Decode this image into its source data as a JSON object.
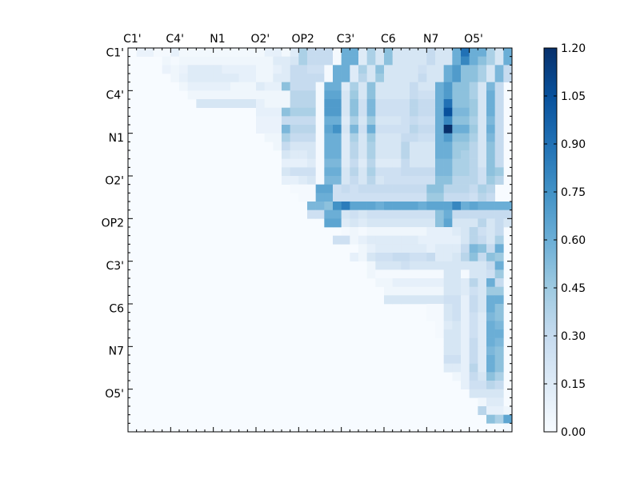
{
  "chart_data": {
    "type": "heatmap",
    "title": "",
    "xlabel": "",
    "ylabel": "",
    "n": 45,
    "x_tick_labels": [
      "C1'",
      "C4'",
      "N1",
      "O2'",
      "OP2",
      "C3'",
      "C6",
      "N7",
      "O5'"
    ],
    "y_tick_labels": [
      "C1'",
      "C4'",
      "N1",
      "O2'",
      "OP2",
      "C3'",
      "C6",
      "N7",
      "O5'"
    ],
    "colorbar": {
      "range": [
        0,
        1.2
      ],
      "ticks": [
        "0.00",
        "0.15",
        "0.30",
        "0.45",
        "0.60",
        "0.75",
        "0.90",
        "1.05",
        "1.20"
      ],
      "colormap": "Blues",
      "low_color": "#f7fbff",
      "high_color": "#08306b"
    },
    "row_profiles": [
      {
        "row": 0,
        "start": 1,
        "values": [
          0.08,
          0.08,
          0.02,
          0.02,
          0.1,
          0.03,
          0.03,
          0.03,
          0.03,
          0.03,
          0.03,
          0.03,
          0.03,
          0.03,
          0.03,
          0.1,
          0.1,
          0.03,
          0.15,
          0.4,
          0.3,
          0.3,
          0.3,
          0.02,
          0.6,
          0.6,
          0.15,
          0.4,
          0.2,
          0.5,
          0.2,
          0.2,
          0.2,
          0.2,
          0.3,
          0.2,
          0.2,
          0.6,
          0.9,
          0.6,
          0.6,
          0.4,
          0.2,
          0.6,
          0.3
        ]
      },
      {
        "row": 1,
        "start": 4,
        "values": [
          0.05,
          0.02,
          0.05,
          0.05,
          0.05,
          0.05,
          0.05,
          0.05,
          0.05,
          0.05,
          0.05,
          0.05,
          0.05,
          0.15,
          0.15,
          0.2,
          0.4,
          0.3,
          0.3,
          0.3,
          0.02,
          0.6,
          0.6,
          0.15,
          0.4,
          0.2,
          0.5,
          0.2,
          0.2,
          0.2,
          0.2,
          0.3,
          0.2,
          0.2,
          0.6,
          0.8,
          0.6,
          0.5,
          0.4,
          0.2,
          0.6,
          0.3
        ]
      },
      {
        "row": 2,
        "start": 4,
        "values": [
          0.08,
          0.05,
          0.08,
          0.15,
          0.15,
          0.15,
          0.15,
          0.1,
          0.1,
          0.1,
          0.1,
          0.05,
          0.05,
          0.1,
          0.15,
          0.3,
          0.3,
          0.25,
          0.25,
          0.02,
          0.6,
          0.6,
          0.15,
          0.4,
          0.2,
          0.5,
          0.2,
          0.2,
          0.2,
          0.2,
          0.25,
          0.2,
          0.2,
          0.6,
          0.7,
          0.5,
          0.5,
          0.4,
          0.2,
          0.55,
          0.3
        ]
      },
      {
        "row": 3,
        "start": 5,
        "values": [
          0.05,
          0.1,
          0.15,
          0.15,
          0.15,
          0.15,
          0.15,
          0.15,
          0.1,
          0.1,
          0.05,
          0.05,
          0.15,
          0.15,
          0.3,
          0.3,
          0.3,
          0.3,
          0.02,
          0.6,
          0.6,
          0.15,
          0.35,
          0.2,
          0.45,
          0.2,
          0.2,
          0.2,
          0.2,
          0.3,
          0.2,
          0.2,
          0.6,
          0.7,
          0.5,
          0.5,
          0.4,
          0.2,
          0.55,
          0.3
        ]
      },
      {
        "row": 4,
        "start": 6,
        "values": [
          0.05,
          0.1,
          0.1,
          0.1,
          0.1,
          0.1,
          0.05,
          0.05,
          0.05,
          0.15,
          0.1,
          0.1,
          0.5,
          0.3,
          0.3,
          0.3,
          0.02,
          0.6,
          0.6,
          0.15,
          0.4,
          0.2,
          0.5,
          0.2,
          0.2,
          0.2,
          0.2,
          0.3,
          0.2,
          0.2,
          0.6,
          0.7,
          0.5,
          0.5,
          0.4,
          0.2,
          0.55,
          0.3
        ]
      },
      {
        "row": 5,
        "start": 7,
        "values": [
          0.05,
          0.05,
          0.05,
          0.05,
          0.05,
          0.05,
          0.05,
          0.05,
          0.05,
          0.05,
          0.05,
          0.05,
          0.35,
          0.35,
          0.35,
          0.02,
          0.65,
          0.65,
          0.2,
          0.45,
          0.2,
          0.5,
          0.2,
          0.2,
          0.2,
          0.2,
          0.3,
          0.25,
          0.25,
          0.6,
          0.7,
          0.5,
          0.5,
          0.4,
          0.2,
          0.6,
          0.3
        ]
      },
      {
        "row": 6,
        "start": 8,
        "values": [
          0.2,
          0.2,
          0.2,
          0.2,
          0.2,
          0.2,
          0.2,
          0.1,
          0.05,
          0.05,
          0.05,
          0.35,
          0.35,
          0.35,
          0.02,
          0.7,
          0.7,
          0.2,
          0.5,
          0.25,
          0.55,
          0.25,
          0.25,
          0.25,
          0.25,
          0.35,
          0.3,
          0.3,
          0.6,
          0.9,
          0.5,
          0.5,
          0.45,
          0.2,
          0.6,
          0.3
        ]
      },
      {
        "row": 7,
        "start": 15,
        "values": [
          0.1,
          0.1,
          0.1,
          0.5,
          0.4,
          0.4,
          0.4,
          0.02,
          0.7,
          0.7,
          0.2,
          0.5,
          0.25,
          0.55,
          0.25,
          0.25,
          0.25,
          0.25,
          0.35,
          0.3,
          0.3,
          0.6,
          1.05,
          0.55,
          0.55,
          0.45,
          0.2,
          0.6,
          0.3
        ]
      },
      {
        "row": 8,
        "start": 15,
        "values": [
          0.08,
          0.08,
          0.08,
          0.3,
          0.3,
          0.3,
          0.3,
          0.02,
          0.6,
          0.6,
          0.15,
          0.4,
          0.2,
          0.45,
          0.2,
          0.2,
          0.2,
          0.25,
          0.3,
          0.25,
          0.25,
          0.6,
          0.8,
          0.5,
          0.5,
          0.4,
          0.2,
          0.55,
          0.3
        ]
      },
      {
        "row": 9,
        "start": 15,
        "values": [
          0.08,
          0.08,
          0.08,
          0.55,
          0.35,
          0.35,
          0.35,
          0.02,
          0.65,
          0.75,
          0.2,
          0.55,
          0.25,
          0.6,
          0.25,
          0.25,
          0.25,
          0.25,
          0.35,
          0.3,
          0.3,
          0.6,
          1.2,
          0.6,
          0.6,
          0.45,
          0.2,
          0.6,
          0.3
        ]
      },
      {
        "row": 10,
        "start": 16,
        "values": [
          0.05,
          0.05,
          0.4,
          0.3,
          0.3,
          0.3,
          0.02,
          0.6,
          0.6,
          0.15,
          0.4,
          0.2,
          0.45,
          0.2,
          0.2,
          0.2,
          0.3,
          0.3,
          0.25,
          0.25,
          0.6,
          0.7,
          0.5,
          0.5,
          0.4,
          0.2,
          0.55,
          0.3
        ]
      },
      {
        "row": 11,
        "start": 17,
        "values": [
          0.05,
          0.3,
          0.2,
          0.2,
          0.2,
          0.02,
          0.6,
          0.6,
          0.15,
          0.35,
          0.2,
          0.4,
          0.2,
          0.2,
          0.2,
          0.35,
          0.2,
          0.2,
          0.2,
          0.6,
          0.6,
          0.45,
          0.45,
          0.35,
          0.2,
          0.5,
          0.3
        ]
      },
      {
        "row": 12,
        "start": 18,
        "values": [
          0.2,
          0.15,
          0.15,
          0.2,
          0.02,
          0.6,
          0.6,
          0.15,
          0.35,
          0.2,
          0.4,
          0.2,
          0.2,
          0.2,
          0.35,
          0.2,
          0.2,
          0.2,
          0.6,
          0.6,
          0.45,
          0.4,
          0.35,
          0.2,
          0.5,
          0.3
        ]
      },
      {
        "row": 13,
        "start": 18,
        "values": [
          0.1,
          0.1,
          0.1,
          0.15,
          0.02,
          0.55,
          0.55,
          0.15,
          0.3,
          0.15,
          0.35,
          0.15,
          0.15,
          0.15,
          0.3,
          0.2,
          0.2,
          0.2,
          0.55,
          0.55,
          0.4,
          0.4,
          0.35,
          0.2,
          0.5,
          0.3
        ]
      },
      {
        "row": 14,
        "start": 18,
        "values": [
          0.2,
          0.25,
          0.25,
          0.25,
          0.02,
          0.6,
          0.6,
          0.2,
          0.35,
          0.2,
          0.4,
          0.25,
          0.25,
          0.25,
          0.3,
          0.3,
          0.3,
          0.3,
          0.55,
          0.55,
          0.4,
          0.4,
          0.35,
          0.25,
          0.5,
          0.45
        ]
      },
      {
        "row": 15,
        "start": 18,
        "values": [
          0.1,
          0.1,
          0.15,
          0.2,
          0.02,
          0.55,
          0.55,
          0.2,
          0.3,
          0.2,
          0.35,
          0.2,
          0.25,
          0.25,
          0.25,
          0.25,
          0.25,
          0.25,
          0.5,
          0.5,
          0.35,
          0.35,
          0.35,
          0.25,
          0.45,
          0.35
        ]
      },
      {
        "row": 16,
        "start": 19,
        "values": [
          0.02,
          0.02,
          0.02,
          0.65,
          0.65,
          0.25,
          0.3,
          0.25,
          0.3,
          0.3,
          0.3,
          0.3,
          0.3,
          0.3,
          0.3,
          0.3,
          0.5,
          0.5,
          0.35,
          0.35,
          0.35,
          0.3,
          0.4,
          0.35
        ]
      },
      {
        "row": 17,
        "start": 20,
        "values": [
          0.02,
          0.02,
          0.6,
          0.6,
          0.25,
          0.25,
          0.25,
          0.25,
          0.25,
          0.25,
          0.25,
          0.25,
          0.25,
          0.25,
          0.25,
          0.45,
          0.45,
          0.3,
          0.3,
          0.3,
          0.25,
          0.35,
          0.3
        ]
      },
      {
        "row": 18,
        "start": 21,
        "values": [
          0.55,
          0.55,
          0.5,
          0.75,
          0.85,
          0.65,
          0.65,
          0.65,
          0.6,
          0.65,
          0.65,
          0.65,
          0.65,
          0.6,
          0.65,
          0.65,
          0.65,
          0.8,
          0.6,
          0.65,
          0.6,
          0.6,
          0.6,
          0.6
        ]
      },
      {
        "row": 19,
        "start": 21,
        "values": [
          0.25,
          0.25,
          0.6,
          0.6,
          0.2,
          0.25,
          0.2,
          0.25,
          0.25,
          0.25,
          0.25,
          0.25,
          0.25,
          0.25,
          0.25,
          0.5,
          0.6,
          0.3,
          0.3,
          0.3,
          0.3,
          0.3,
          0.3,
          0.3
        ]
      },
      {
        "row": 20,
        "start": 23,
        "values": [
          0.65,
          0.65,
          0.15,
          0.2,
          0.15,
          0.2,
          0.2,
          0.2,
          0.2,
          0.2,
          0.2,
          0.2,
          0.2,
          0.5,
          0.65,
          0.2,
          0.2,
          0.2,
          0.35,
          0.2,
          0.3,
          0.2
        ]
      },
      {
        "row": 21,
        "start": 25,
        "values": [
          0.02,
          0.05,
          0.02,
          0.05,
          0.05,
          0.05,
          0.05,
          0.05,
          0.05,
          0.05,
          0.1,
          0.1,
          0.1,
          0.15,
          0.2,
          0.35,
          0.25,
          0.2,
          0.3
        ]
      },
      {
        "row": 22,
        "start": 24,
        "values": [
          0.25,
          0.25,
          0.05,
          0.1,
          0.15,
          0.15,
          0.15,
          0.15,
          0.15,
          0.15,
          0.1,
          0.1,
          0.1,
          0.1,
          0.1,
          0.2,
          0.35,
          0.3,
          0.2,
          0.4
        ]
      },
      {
        "row": 23,
        "start": 27,
        "values": [
          0.05,
          0.1,
          0.15,
          0.15,
          0.15,
          0.15,
          0.15,
          0.15,
          0.1,
          0.15,
          0.15,
          0.15,
          0.3,
          0.55,
          0.5,
          0.3,
          0.6
        ]
      },
      {
        "row": 24,
        "start": 26,
        "values": [
          0.1,
          0.05,
          0.2,
          0.25,
          0.25,
          0.3,
          0.3,
          0.25,
          0.25,
          0.3,
          0.15,
          0.15,
          0.2,
          0.35,
          0.5,
          0.3,
          0.5,
          0.45
        ]
      },
      {
        "row": 25,
        "start": 28,
        "values": [
          0.05,
          0.2,
          0.2,
          0.2,
          0.25,
          0.2,
          0.2,
          0.2,
          0.2,
          0.2,
          0.2,
          0.2,
          0.2,
          0.2,
          0.3,
          0.6
        ]
      },
      {
        "row": 26,
        "start": 28,
        "values": [
          0.05,
          0.02,
          0.02,
          0.02,
          0.02,
          0.02,
          0.02,
          0.02,
          0.02,
          0.2,
          0.2,
          0.02,
          0.2,
          0.2,
          0.25,
          0.45
        ]
      },
      {
        "row": 27,
        "start": 29,
        "values": [
          0.05,
          0.05,
          0.1,
          0.1,
          0.1,
          0.1,
          0.1,
          0.1,
          0.2,
          0.2,
          0.15,
          0.35,
          0.2,
          0.6,
          0.3
        ]
      },
      {
        "row": 28,
        "start": 30,
        "values": [
          0.05,
          0.05,
          0.05,
          0.05,
          0.05,
          0.05,
          0.05,
          0.2,
          0.2,
          0.15,
          0.25,
          0.2,
          0.45,
          0.45
        ]
      },
      {
        "row": 29,
        "start": 30,
        "values": [
          0.2,
          0.2,
          0.2,
          0.2,
          0.2,
          0.2,
          0.2,
          0.25,
          0.25,
          0.1,
          0.3,
          0.2,
          0.6,
          0.6
        ]
      },
      {
        "row": 30,
        "start": 35,
        "values": [
          0.02,
          0.02,
          0.2,
          0.25,
          0.1,
          0.3,
          0.2,
          0.6,
          0.5
        ]
      },
      {
        "row": 31,
        "start": 35,
        "values": [
          0.02,
          0.02,
          0.2,
          0.25,
          0.1,
          0.25,
          0.15,
          0.55,
          0.5
        ]
      },
      {
        "row": 32,
        "start": 36,
        "values": [
          0.02,
          0.15,
          0.2,
          0.1,
          0.25,
          0.15,
          0.6,
          0.55
        ]
      },
      {
        "row": 33,
        "start": 36,
        "values": [
          0.02,
          0.2,
          0.2,
          0.1,
          0.25,
          0.15,
          0.6,
          0.6
        ]
      },
      {
        "row": 34,
        "start": 37,
        "values": [
          0.2,
          0.2,
          0.1,
          0.3,
          0.15,
          0.6,
          0.55
        ]
      },
      {
        "row": 35,
        "start": 37,
        "values": [
          0.2,
          0.2,
          0.1,
          0.3,
          0.15,
          0.55,
          0.5
        ]
      },
      {
        "row": 36,
        "start": 37,
        "values": [
          0.25,
          0.25,
          0.1,
          0.3,
          0.15,
          0.6,
          0.5
        ]
      },
      {
        "row": 37,
        "start": 37,
        "values": [
          0.15,
          0.15,
          0.1,
          0.35,
          0.15,
          0.6,
          0.5
        ]
      },
      {
        "row": 38,
        "start": 38,
        "values": [
          0.05,
          0.1,
          0.3,
          0.2,
          0.5,
          0.4
        ]
      },
      {
        "row": 39,
        "start": 39,
        "values": [
          0.1,
          0.25,
          0.25,
          0.35,
          0.3
        ]
      },
      {
        "row": 40,
        "start": 40,
        "values": [
          0.2,
          0.2,
          0.2,
          0.2
        ]
      },
      {
        "row": 41,
        "start": 41,
        "values": [
          0.05,
          0.15,
          0.15
        ]
      },
      {
        "row": 42,
        "start": 41,
        "values": [
          0.35,
          0.1,
          0.1,
          0.05
        ]
      },
      {
        "row": 43,
        "start": 42,
        "values": [
          0.5,
          0.4,
          0.65
        ]
      },
      {
        "row": 44,
        "start": 44,
        "values": [
          0.02
        ]
      }
    ]
  }
}
